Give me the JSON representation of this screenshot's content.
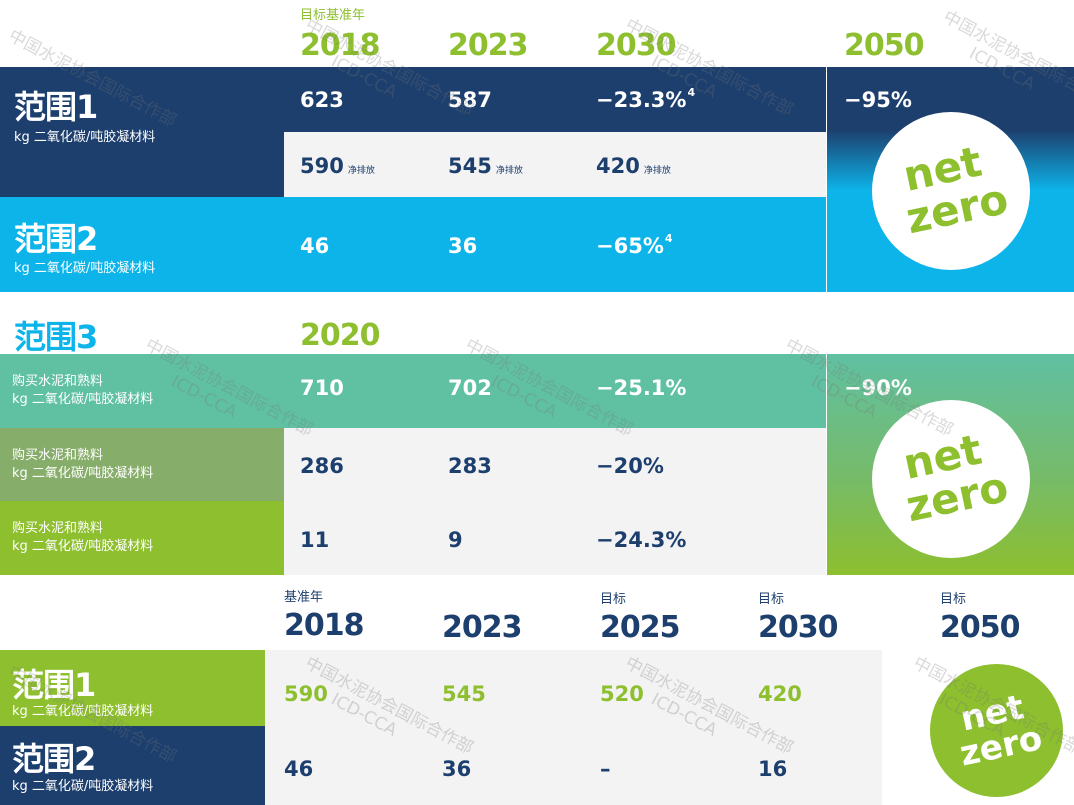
{
  "top": {
    "base_label": "目标基准年",
    "years": [
      "2018",
      "2023",
      "2030",
      "2050"
    ],
    "scope1": {
      "title": "范围1",
      "unit": "kg 二氧化碳/吨胶凝材料",
      "gross": [
        "623",
        "587",
        "−23.3%"
      ],
      "gross_sup": "4",
      "net": [
        "590",
        "545",
        "420"
      ],
      "net_tag": "净排放",
      "target_2050": "−95%"
    },
    "scope2": {
      "title": "范围2",
      "unit": "kg 二氧化碳/吨胶凝材料",
      "values": [
        "46",
        "36",
        "−65%"
      ],
      "sup": "4"
    },
    "netzero": [
      "net",
      "zero"
    ]
  },
  "scope3": {
    "title": "范围3",
    "year": "2020",
    "target_2050": "−90%",
    "rows": [
      {
        "label": "购买水泥和熟料",
        "unit": "kg 二氧化碳/吨胶凝材料",
        "values": [
          "710",
          "702",
          "−25.1%"
        ]
      },
      {
        "label": "购买水泥和熟料",
        "unit": "kg 二氧化碳/吨胶凝材料",
        "values": [
          "286",
          "283",
          "−20%"
        ]
      },
      {
        "label": "购买水泥和熟料",
        "unit": "kg 二氧化碳/吨胶凝材料",
        "values": [
          "11",
          "9",
          "−24.3%"
        ]
      }
    ]
  },
  "bottom": {
    "base_label": "基准年",
    "target_label": "目标",
    "years": [
      "2018",
      "2023",
      "2025",
      "2030",
      "2050"
    ],
    "scope1": {
      "title": "范围1",
      "unit": "kg 二氧化碳/吨胶凝材料",
      "values": [
        "590",
        "545",
        "520",
        "420"
      ]
    },
    "scope2": {
      "title": "范围2",
      "unit": "kg 二氧化碳/吨胶凝材料",
      "values": [
        "46",
        "36",
        "–",
        "16"
      ]
    }
  },
  "watermark": [
    "中国水泥协会国际合作部",
    "ICD-CCA"
  ],
  "colors": {
    "navy": "#1d3f6e",
    "sky": "#0db4ea",
    "teal": "#60c0a2",
    "lime": "#8dbf2e",
    "olive": "#87ad6a"
  }
}
